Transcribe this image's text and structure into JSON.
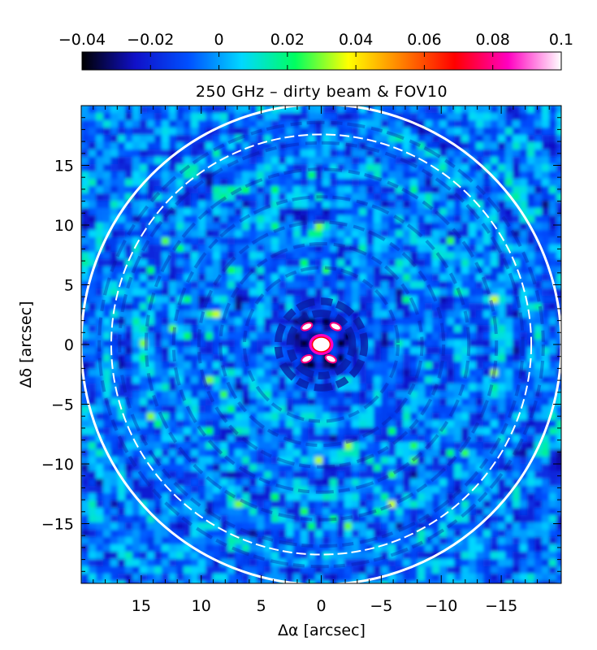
{
  "chart_data": {
    "type": "heatmap",
    "title": "250 GHz – dirty beam & FOV10",
    "xlabel": "Δα [arcsec]",
    "ylabel": "Δδ [arcsec]",
    "xlim": [
      20,
      -20
    ],
    "ylim": [
      -20,
      20
    ],
    "x_ticks": [
      15,
      10,
      5,
      0,
      -5,
      -10,
      -15
    ],
    "x_tick_labels": [
      "15",
      "10",
      "5",
      "0",
      "−5",
      "−10",
      "−15"
    ],
    "y_ticks": [
      15,
      10,
      5,
      0,
      -5,
      -10,
      -15
    ],
    "y_tick_labels": [
      "15",
      "10",
      "5",
      "0",
      "−5",
      "−10",
      "−15"
    ],
    "colorbar": {
      "range": [
        -0.04,
        0.1
      ],
      "ticks": [
        -0.04,
        -0.02,
        0,
        0.02,
        0.04,
        0.06,
        0.08,
        0.1
      ],
      "tick_labels": [
        "−0.04",
        "−0.02",
        "0",
        "0.02",
        "0.04",
        "0.06",
        "0.08",
        "0.1"
      ],
      "colors": [
        "#000000",
        "#1010c8",
        "#0050ff",
        "#00d8ff",
        "#00ff60",
        "#ffff00",
        "#ff8000",
        "#ff0000",
        "#ff00c0",
        "#ffffff"
      ]
    },
    "circles": [
      {
        "center": [
          0,
          0
        ],
        "radius": 20,
        "style": "solid",
        "color": "#ffffff"
      },
      {
        "center": [
          0,
          0
        ],
        "radius": 17.5,
        "style": "dashed",
        "color": "#ffffff"
      }
    ],
    "contours": [
      {
        "label": "central beam peak",
        "x": 0,
        "y": 0,
        "value": 0.1
      },
      {
        "label": "sidelobe",
        "x": 1.2,
        "y": 1.5,
        "value": 0.07
      },
      {
        "label": "sidelobe",
        "x": -1.2,
        "y": 1.5,
        "value": 0.07
      },
      {
        "label": "sidelobe",
        "x": 1.2,
        "y": -1.2,
        "value": 0.07
      },
      {
        "label": "sidelobe",
        "x": -0.8,
        "y": -1.2,
        "value": 0.07
      }
    ]
  }
}
